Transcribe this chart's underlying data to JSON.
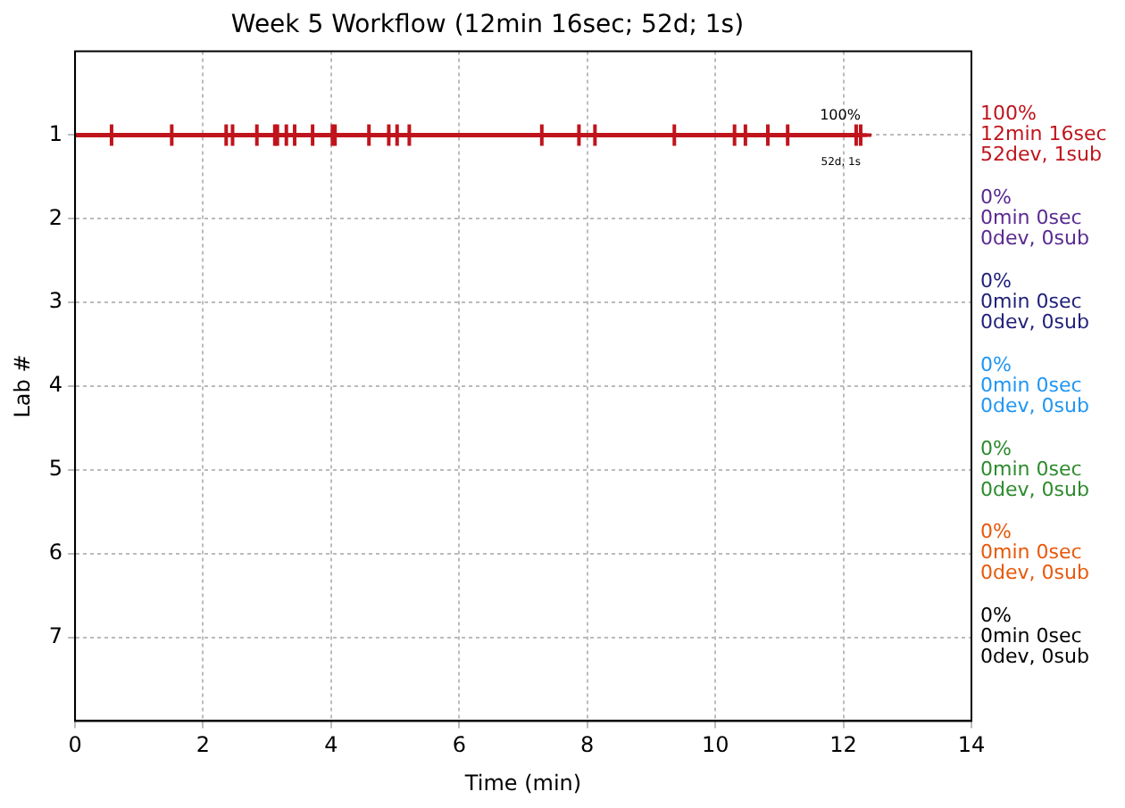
{
  "chart_data": {
    "type": "line",
    "title": "Week 5 Workflow (12min 16sec; 52d; 1s)",
    "xlabel": "Time (min)",
    "ylabel": "Lab #",
    "xlim": [
      0,
      14
    ],
    "xticks": [
      0,
      2,
      4,
      6,
      8,
      10,
      12,
      14
    ],
    "ylim": [
      8,
      0
    ],
    "yticks": [
      1,
      2,
      3,
      4,
      5,
      6,
      7
    ],
    "grid": true,
    "legend": false,
    "series": [
      {
        "type": "line",
        "marker": "none",
        "color": "#c0141c",
        "x": [
          0,
          12.27
        ],
        "values": [
          1,
          1
        ]
      },
      {
        "type": "scatter",
        "marker": "cross",
        "color": "#c0141c",
        "x": [
          0.57,
          1.51,
          2.36,
          2.46,
          2.84,
          3.12,
          3.16,
          3.3,
          3.43,
          3.71,
          4.02,
          4.06,
          4.59,
          4.9,
          5.03,
          5.22,
          7.29,
          7.87,
          8.12,
          9.36,
          10.3,
          10.47,
          10.82,
          11.13,
          12.2
        ],
        "values": [
          1,
          1,
          1,
          1,
          1,
          1,
          1,
          1,
          1,
          1,
          1,
          1,
          1,
          1,
          1,
          1,
          1,
          1,
          1,
          1,
          1,
          1,
          1,
          1,
          1
        ]
      },
      {
        "type": "scatter",
        "marker": "cross",
        "color": "#c0141c",
        "x": [
          12.27
        ],
        "values": [
          1
        ]
      }
    ],
    "annotations": [
      {
        "text": "100%",
        "x": 12.27,
        "y": 1
      },
      {
        "text": "52d, 1s",
        "x": 12.27,
        "y": 1
      },
      "100%\n12min 16sec\n52dev, 1sub",
      "0%\n0min 0sec\n0dev, 0sub",
      "0%\n0min 0sec\n0dev, 0sub",
      "0%\n0min 0sec\n0dev, 0sub",
      "0%\n0min 0sec\n0dev, 0sub",
      "0%\n0min 0sec\n0dev, 0sub",
      "0%\n0min 0sec\n0dev, 0sub"
    ]
  }
}
